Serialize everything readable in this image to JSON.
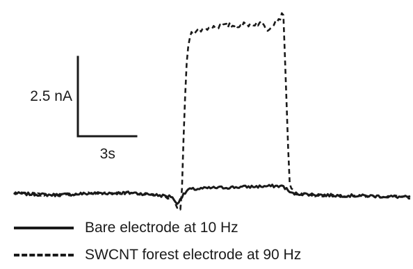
{
  "chart_data": {
    "type": "line",
    "title": "",
    "xlabel": "",
    "ylabel": "",
    "x_unit": "s",
    "y_unit": "nA",
    "xlim": [
      0,
      20
    ],
    "ylim": [
      -0.6,
      5.8
    ],
    "grid": false,
    "scale_bars": {
      "current": {
        "label": "2.5 nA",
        "value": 2.5
      },
      "time": {
        "label": "3s",
        "value": 3
      }
    },
    "legend": {
      "placement": "bottom-left"
    },
    "series": [
      {
        "name": "Bare electrode at 10 Hz",
        "style": "solid",
        "color": "#1a1a1a",
        "x": [
          0.0,
          2.0,
          4.0,
          6.0,
          8.0,
          8.2,
          8.45,
          8.8,
          10.0,
          11.5,
          13.2,
          13.6,
          14.0,
          16.0,
          18.0,
          20.0
        ],
        "y": [
          0.0,
          -0.05,
          0.0,
          0.02,
          -0.1,
          -0.35,
          -0.12,
          0.12,
          0.17,
          0.2,
          0.23,
          0.22,
          0.0,
          -0.06,
          -0.08,
          -0.12
        ]
      },
      {
        "name": "SWCNT forest electrode at 90 Hz",
        "style": "dashed",
        "color": "#1a1a1a",
        "x": [
          0.0,
          2.0,
          4.0,
          6.0,
          8.0,
          8.2,
          8.45,
          8.6,
          8.75,
          8.9,
          9.1,
          9.5,
          10.0,
          11.0,
          12.0,
          12.5,
          12.8,
          13.1,
          13.4,
          13.6,
          13.75,
          13.9,
          14.2,
          15.0,
          16.5,
          18.0,
          20.0
        ],
        "y": [
          0.0,
          -0.05,
          0.0,
          0.02,
          -0.15,
          -0.4,
          -0.5,
          2.5,
          4.4,
          4.95,
          5.05,
          5.1,
          5.18,
          5.22,
          5.27,
          5.3,
          5.1,
          5.3,
          5.45,
          5.6,
          3.0,
          0.3,
          0.0,
          -0.06,
          -0.08,
          -0.08,
          -0.12
        ]
      }
    ]
  }
}
